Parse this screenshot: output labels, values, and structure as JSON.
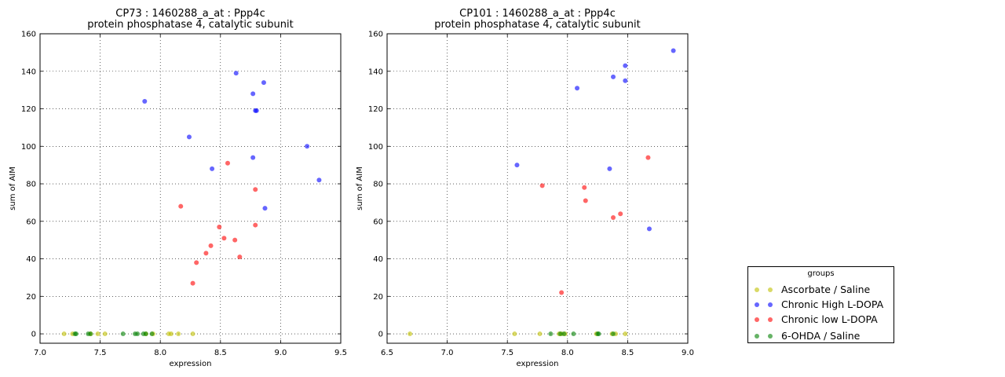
{
  "chart_data": [
    {
      "type": "scatter",
      "title": "CP73 : 1460288_a_at : Ppp4c",
      "subtitle": "protein phosphatase 4, catalytic subunit",
      "xlabel": "expression",
      "ylabel": "sum of AIM",
      "xlim": [
        7.0,
        9.5
      ],
      "ylim": [
        -5,
        160
      ],
      "xticks": [
        "7.0",
        "7.5",
        "8.0",
        "8.5",
        "9.0",
        "9.5"
      ],
      "yticks": [
        "0",
        "20",
        "40",
        "60",
        "80",
        "100",
        "120",
        "140",
        "160"
      ],
      "grid": true,
      "series": [
        {
          "name": "Ascorbate / Saline",
          "color": "#bfbf00",
          "x": [
            7.2,
            7.27,
            7.42,
            7.48,
            7.54,
            7.88,
            7.94,
            8.07,
            8.09,
            8.15,
            8.27
          ],
          "y": [
            0,
            0,
            0,
            0,
            0,
            0,
            0,
            0,
            0,
            0,
            0
          ]
        },
        {
          "name": "Chronic High L-DOPA",
          "color": "#0000ff",
          "x": [
            7.87,
            8.24,
            8.43,
            8.63,
            8.77,
            8.77,
            8.79,
            8.8,
            8.86,
            8.87,
            9.22,
            9.32
          ],
          "y": [
            124,
            105,
            88,
            139,
            128,
            94,
            119,
            119,
            134,
            67,
            100,
            82
          ]
        },
        {
          "name": "Chronic low L-DOPA",
          "color": "#ff0000",
          "x": [
            8.17,
            8.27,
            8.3,
            8.38,
            8.42,
            8.49,
            8.53,
            8.56,
            8.62,
            8.66,
            8.79,
            8.79
          ],
          "y": [
            68,
            27,
            38,
            43,
            47,
            57,
            51,
            91,
            50,
            41,
            77,
            58
          ]
        },
        {
          "name": "6-OHDA / Saline",
          "color": "#008000",
          "x": [
            7.29,
            7.3,
            7.4,
            7.42,
            7.69,
            7.79,
            7.81,
            7.86,
            7.88,
            7.93
          ],
          "y": [
            0,
            0,
            0,
            0,
            0,
            0,
            0,
            0,
            0,
            0
          ]
        }
      ]
    },
    {
      "type": "scatter",
      "title": "CP101 : 1460288_a_at : Ppp4c",
      "subtitle": "protein phosphatase 4, catalytic subunit",
      "xlabel": "expression",
      "ylabel": "sum of AIM",
      "xlim": [
        6.5,
        9.0
      ],
      "ylim": [
        -5,
        160
      ],
      "xticks": [
        "6.5",
        "7.0",
        "7.5",
        "8.0",
        "8.5",
        "9.0"
      ],
      "yticks": [
        "0",
        "20",
        "40",
        "60",
        "80",
        "100",
        "120",
        "140",
        "160"
      ],
      "grid": true,
      "series": [
        {
          "name": "Ascorbate / Saline",
          "color": "#bfbf00",
          "x": [
            6.69,
            7.56,
            7.77,
            7.93,
            7.95,
            7.98,
            8.24,
            8.37,
            8.4,
            8.48
          ],
          "y": [
            0,
            0,
            0,
            0,
            0,
            0,
            0,
            0,
            0,
            0
          ]
        },
        {
          "name": "Chronic High L-DOPA",
          "color": "#0000ff",
          "x": [
            7.58,
            8.08,
            8.35,
            8.38,
            8.48,
            8.48,
            8.68,
            8.88
          ],
          "y": [
            90,
            131,
            88,
            137,
            143,
            135,
            56,
            151
          ]
        },
        {
          "name": "Chronic low L-DOPA",
          "color": "#ff0000",
          "x": [
            7.79,
            7.95,
            8.14,
            8.15,
            8.38,
            8.44,
            8.67
          ],
          "y": [
            79,
            22,
            78,
            71,
            62,
            64,
            94
          ]
        },
        {
          "name": "6-OHDA / Saline",
          "color": "#008000",
          "x": [
            7.86,
            7.94,
            7.97,
            8.05,
            8.25,
            8.26,
            8.38
          ],
          "y": [
            0,
            0,
            0,
            0,
            0,
            0,
            0
          ]
        }
      ]
    }
  ],
  "legend": {
    "title": "groups",
    "placement": "lower-right, outside plots",
    "entries": [
      {
        "label": "Ascorbate / Saline",
        "color": "#bfbf00"
      },
      {
        "label": "Chronic High L-DOPA",
        "color": "#0000ff"
      },
      {
        "label": "Chronic low L-DOPA",
        "color": "#ff0000"
      },
      {
        "label": "6-OHDA / Saline",
        "color": "#008000"
      }
    ]
  }
}
